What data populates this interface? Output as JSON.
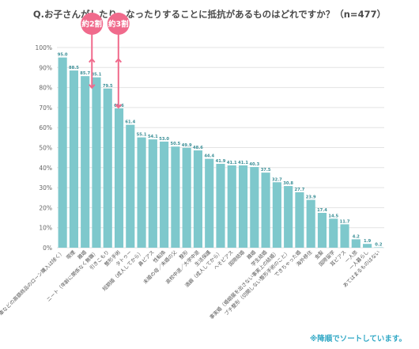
{
  "chart_data": {
    "type": "bar",
    "title": "Q.お子さんがしたり、なったりすることに抵抗があるものはどれですか？（n=477）",
    "ylim": [
      0,
      100
    ],
    "yticks": [
      0,
      10,
      20,
      30,
      40,
      50,
      60,
      70,
      80,
      90,
      100
    ],
    "ytick_labels": [
      "0%",
      "10%",
      "20%",
      "30%",
      "40%",
      "50%",
      "60%",
      "70%",
      "80%",
      "90%",
      "100%"
    ],
    "grid": true,
    "bar_color": "#7ec8cc",
    "categories": [
      "借金（家や車などの高額商品のローン購入は除く）",
      "喫煙",
      "離婚",
      "ニート（年齢に関係なく無職）",
      "引きこもり",
      "整形手術",
      "タトゥー",
      "短期婚（成人してから）",
      "鼻ピアス",
      "性転換",
      "未婚の母／未婚の父",
      "整形",
      "高校中退／大学中退",
      "生活保護",
      "酒癖（成人してから）",
      "へそピアス",
      "国際結婚",
      "離婚",
      "学生結婚",
      "事実婚（婚姻届を出さない事実上の結婚）",
      "ブチ整形（切開しない整形手術のこと）",
      "できちゃった婚",
      "海外移住",
      "金髪",
      "国際留学",
      "耳ピアス",
      "一人旅",
      "一人暮らし",
      "あてはまるものはない"
    ],
    "values": [
      95.0,
      88.5,
      85.7,
      85.1,
      79.5,
      69.6,
      61.4,
      55.1,
      54.1,
      53.0,
      50.5,
      49.9,
      48.6,
      44.4,
      41.9,
      41.1,
      41.1,
      40.3,
      37.5,
      32.7,
      30.8,
      27.7,
      23.9,
      17.4,
      14.5,
      11.7,
      4.2,
      1.9,
      0.2
    ],
    "value_labels": [
      "95.0",
      "88.5",
      "85.7",
      "85.1",
      "79.5",
      "69.6",
      "61.4",
      "55.1",
      "54.1",
      "53.0",
      "50.5",
      "49.9",
      "48.6",
      "44.4",
      "41.9",
      "41.1",
      "41.1",
      "40.3",
      "37.5",
      "32.7",
      "30.8",
      "27.7",
      "23.9",
      "17.4",
      "14.5",
      "11.7",
      "4.2",
      "1.9",
      "0.2"
    ],
    "annotations": [
      {
        "text": "約2割",
        "color": "#f06a8c",
        "from_index": 0,
        "to_index": 4
      },
      {
        "text": "約3割",
        "color": "#f06a8c",
        "from_index": 0,
        "to_index": 5
      }
    ]
  },
  "footnote": "※降順でソートしています。"
}
